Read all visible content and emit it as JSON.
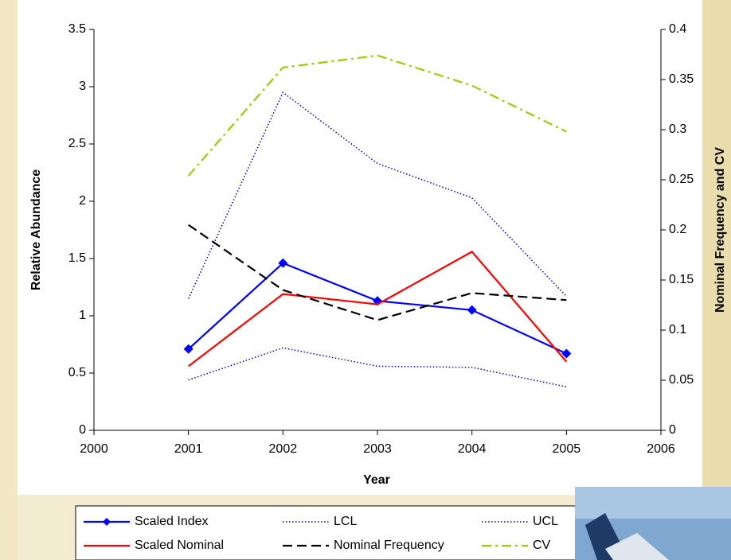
{
  "chart_data": {
    "type": "line",
    "xlabel": "Year",
    "ylabel": "Relative Abundance",
    "y2label": "Nominal Frequency and CV",
    "xlim": [
      2000,
      2006
    ],
    "xticks": [
      2000,
      2001,
      2002,
      2003,
      2004,
      2005,
      2006
    ],
    "ylim": [
      0,
      3.5
    ],
    "yticks": [
      0,
      0.5,
      1,
      1.5,
      2,
      2.5,
      3,
      3.5
    ],
    "y2lim": [
      0,
      0.4
    ],
    "y2ticks": [
      0,
      0.05,
      0.1,
      0.15,
      0.2,
      0.25,
      0.3,
      0.35,
      0.4
    ],
    "x": [
      2001,
      2002,
      2003,
      2004,
      2005
    ],
    "series": [
      {
        "name": "Scaled Index",
        "color": "#0000ff",
        "style": "solid",
        "marker": "diamond",
        "values": [
          0.71,
          1.46,
          1.13,
          1.05,
          0.67
        ]
      },
      {
        "name": "LCL",
        "color": "#0000cc",
        "style": "dotted",
        "values": [
          0.44,
          0.72,
          0.56,
          0.55,
          0.38
        ]
      },
      {
        "name": "UCL",
        "color": "#0000cc",
        "style": "dotted",
        "values": [
          1.15,
          2.95,
          2.33,
          2.03,
          1.17
        ]
      },
      {
        "name": "Scaled Nominal",
        "color": "#ff0000",
        "style": "solid",
        "values": [
          0.56,
          1.19,
          1.1,
          1.56,
          0.6
        ]
      },
      {
        "name": "Nominal Frequency",
        "color": "#000000",
        "style": "dashed",
        "axis": "y2",
        "values": [
          0.205,
          0.14,
          0.11,
          0.137,
          0.13
        ]
      },
      {
        "name": "CV",
        "color": "#99cc00",
        "style": "dashdot",
        "axis": "y2",
        "values": [
          0.254,
          0.362,
          0.374,
          0.344,
          0.298
        ]
      }
    ]
  }
}
